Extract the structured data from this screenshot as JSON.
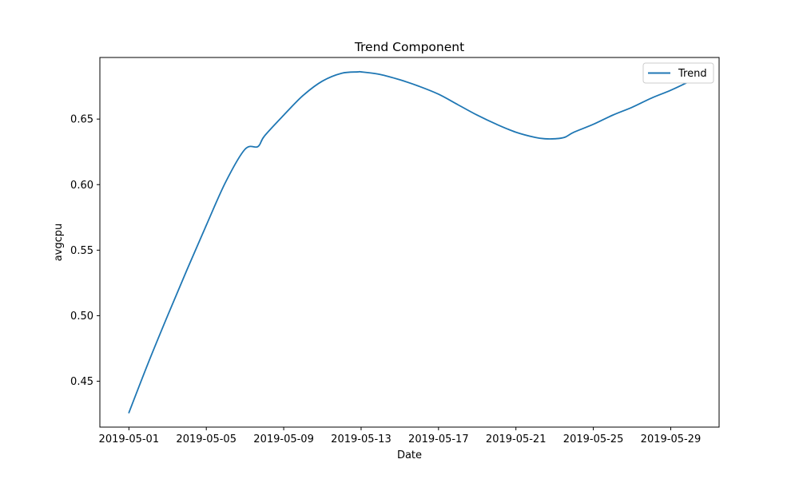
{
  "chart_data": {
    "type": "line",
    "title": "Trend Component",
    "xlabel": "Date",
    "ylabel": "avgcpu",
    "xlim": [
      "2019-04-29T12:00",
      "2019-05-31T12:00"
    ],
    "ylim": [
      0.415,
      0.697
    ],
    "x_ticks": [
      "2019-05-01",
      "2019-05-05",
      "2019-05-09",
      "2019-05-13",
      "2019-05-17",
      "2019-05-21",
      "2019-05-25",
      "2019-05-29"
    ],
    "y_ticks": [
      0.45,
      0.5,
      0.55,
      0.6,
      0.65
    ],
    "y_tick_labels": [
      "0.45",
      "0.50",
      "0.55",
      "0.60",
      "0.65"
    ],
    "grid": false,
    "legend": {
      "position": "top-right",
      "entries": [
        "Trend"
      ]
    },
    "series": [
      {
        "name": "Trend",
        "color": "#1f77b4",
        "x": [
          "2019-05-01",
          "2019-05-02",
          "2019-05-03",
          "2019-05-04",
          "2019-05-05",
          "2019-05-06",
          "2019-05-07",
          "2019-05-07T16:00",
          "2019-05-08",
          "2019-05-09",
          "2019-05-10",
          "2019-05-11",
          "2019-05-12",
          "2019-05-12T20:00",
          "2019-05-13",
          "2019-05-14",
          "2019-05-15",
          "2019-05-16",
          "2019-05-17",
          "2019-05-18",
          "2019-05-19",
          "2019-05-20",
          "2019-05-21",
          "2019-05-22",
          "2019-05-22T12:00",
          "2019-05-23",
          "2019-05-23T12:00",
          "2019-05-24",
          "2019-05-25",
          "2019-05-26",
          "2019-05-27",
          "2019-05-28",
          "2019-05-29",
          "2019-05-30",
          "2019-05-30T12:00"
        ],
        "y": [
          0.426,
          0.464,
          0.5,
          0.535,
          0.569,
          0.602,
          0.627,
          0.629,
          0.637,
          0.653,
          0.668,
          0.679,
          0.685,
          0.686,
          0.686,
          0.684,
          0.68,
          0.675,
          0.669,
          0.661,
          0.653,
          0.646,
          0.64,
          0.636,
          0.635,
          0.635,
          0.636,
          0.64,
          0.646,
          0.653,
          0.659,
          0.666,
          0.672,
          0.679,
          0.683
        ]
      }
    ]
  }
}
